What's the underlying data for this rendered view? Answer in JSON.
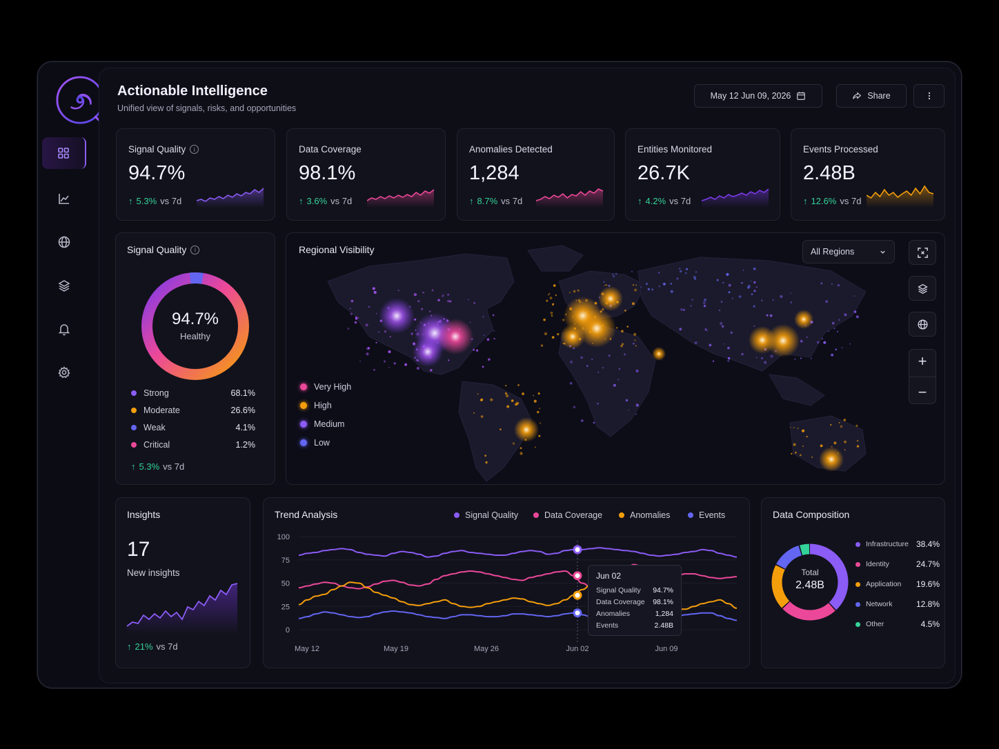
{
  "header": {
    "title": "Actionable Intelligence",
    "subtitle": "Unified view of signals, risks, and opportunities",
    "date_range": "May 12 Jun 09, 2026",
    "share_label": "Share"
  },
  "sidebar": {
    "items": [
      {
        "icon": "grid-icon",
        "active": true
      },
      {
        "icon": "line-chart-icon"
      },
      {
        "icon": "globe-icon"
      },
      {
        "icon": "layers-icon"
      },
      {
        "icon": "bell-icon"
      },
      {
        "icon": "gear-icon"
      }
    ]
  },
  "kpis": [
    {
      "label": "Signal Quality",
      "value": "94.7%",
      "delta": "5.3%",
      "period": "vs 7d",
      "color": "#8b5cf6",
      "info": true
    },
    {
      "label": "Data Coverage",
      "value": "98.1%",
      "delta": "3.6%",
      "period": "vs 7d",
      "color": "#ec4899"
    },
    {
      "label": "Anomalies Detected",
      "value": "1,284",
      "delta": "8.7%",
      "period": "vs 7d",
      "color": "#ec4899"
    },
    {
      "label": "Entities Monitored",
      "value": "26.7K",
      "delta": "4.2%",
      "period": "vs 7d",
      "color": "#7c3aed"
    },
    {
      "label": "Events Processed",
      "value": "2.48B",
      "delta": "12.6%",
      "period": "vs 7d",
      "color": "#f59e0b"
    }
  ],
  "signal_quality": {
    "title": "Signal Quality",
    "center_value": "94.7%",
    "center_label": "Healthy",
    "delta": "5.3%",
    "period": "vs 7d",
    "breakdown": [
      {
        "label": "Strong",
        "value": "68.1%",
        "color": "#8b5cf6"
      },
      {
        "label": "Moderate",
        "value": "26.6%",
        "color": "#f59e0b"
      },
      {
        "label": "Weak",
        "value": "4.1%",
        "color": "#6366f1"
      },
      {
        "label": "Critical",
        "value": "1.2%",
        "color": "#ec4899"
      }
    ]
  },
  "regional": {
    "title": "Regional Visibility",
    "filter": "All Regions",
    "legend": [
      {
        "label": "Very High",
        "color": "#ec4899"
      },
      {
        "label": "High",
        "color": "#f59e0b"
      },
      {
        "label": "Medium",
        "color": "#8b5cf6"
      },
      {
        "label": "Low",
        "color": "#6366f1"
      }
    ]
  },
  "insights": {
    "title": "Insights",
    "count": "17",
    "label": "New insights",
    "delta": "21%",
    "period": "vs 7d"
  },
  "trend": {
    "title": "Trend Analysis",
    "tooltip": {
      "date": "Jun 02",
      "rows": [
        {
          "label": "Signal Quality",
          "value": "94.7%"
        },
        {
          "label": "Data Coverage",
          "value": "98.1%"
        },
        {
          "label": "Anomalies",
          "value": "1,284"
        },
        {
          "label": "Events",
          "value": "2.48B"
        }
      ]
    }
  },
  "composition": {
    "title": "Data Composition",
    "total_label": "Total",
    "total_value": "2.48B",
    "items": [
      {
        "label": "Infrastructure",
        "value": "38.4%",
        "color": "#8b5cf6"
      },
      {
        "label": "Identity",
        "value": "24.7%",
        "color": "#ec4899"
      },
      {
        "label": "Application",
        "value": "19.6%",
        "color": "#f59e0b"
      },
      {
        "label": "Network",
        "value": "12.8%",
        "color": "#6366f1"
      },
      {
        "label": "Other",
        "value": "4.5%",
        "color": "#34d399"
      }
    ]
  },
  "chart_data": {
    "type": "line",
    "title": "Trend Analysis",
    "x_ticks": [
      "May 12",
      "May 19",
      "May 26",
      "Jun 02",
      "Jun 09"
    ],
    "y_ticks": [
      "0",
      "25",
      "50",
      "75",
      "100"
    ],
    "ylim": [
      0,
      100
    ],
    "legend_placement": "top",
    "series": [
      {
        "name": "Signal Quality",
        "color": "#8b5cf6",
        "values": [
          80,
          82,
          83,
          85,
          86,
          87,
          86,
          83,
          81,
          80,
          79,
          82,
          84,
          83,
          81,
          78,
          79,
          82,
          84,
          85,
          83,
          82,
          81,
          80,
          80,
          82,
          84,
          85,
          84,
          81,
          82,
          85,
          86,
          86,
          87,
          88,
          87,
          86,
          85,
          84,
          82,
          80,
          79,
          80,
          81,
          83,
          84,
          86,
          85,
          82,
          80,
          78
        ]
      },
      {
        "name": "Data Coverage",
        "color": "#ec4899",
        "values": [
          45,
          47,
          49,
          51,
          50,
          47,
          45,
          44,
          46,
          49,
          52,
          53,
          51,
          48,
          47,
          49,
          54,
          58,
          60,
          62,
          63,
          62,
          60,
          58,
          56,
          54,
          53,
          56,
          58,
          60,
          62,
          63,
          58,
          50,
          46,
          45,
          48,
          56,
          63,
          70,
          68,
          62,
          58,
          56,
          58,
          60,
          60,
          58,
          56,
          55,
          56,
          57
        ]
      },
      {
        "name": "Anomalies",
        "color": "#f59e0b",
        "values": [
          27,
          32,
          36,
          38,
          43,
          47,
          51,
          50,
          45,
          40,
          37,
          34,
          30,
          27,
          26,
          28,
          30,
          32,
          28,
          25,
          24,
          25,
          28,
          30,
          32,
          34,
          33,
          30,
          28,
          26,
          28,
          32,
          37,
          43,
          48,
          45,
          40,
          35,
          32,
          30,
          29,
          28,
          26,
          24,
          22,
          22,
          25,
          28,
          30,
          32,
          28,
          23
        ]
      },
      {
        "name": "Events",
        "color": "#6366f1",
        "values": [
          12,
          14,
          17,
          19,
          18,
          16,
          14,
          13,
          14,
          17,
          19,
          20,
          19,
          18,
          16,
          14,
          13,
          12,
          14,
          16,
          16,
          15,
          14,
          14,
          15,
          17,
          17,
          16,
          15,
          14,
          15,
          17,
          18,
          16,
          14,
          14,
          16,
          17,
          16,
          15,
          14,
          14,
          13,
          12,
          14,
          16,
          17,
          18,
          18,
          15,
          12,
          10
        ]
      }
    ]
  }
}
